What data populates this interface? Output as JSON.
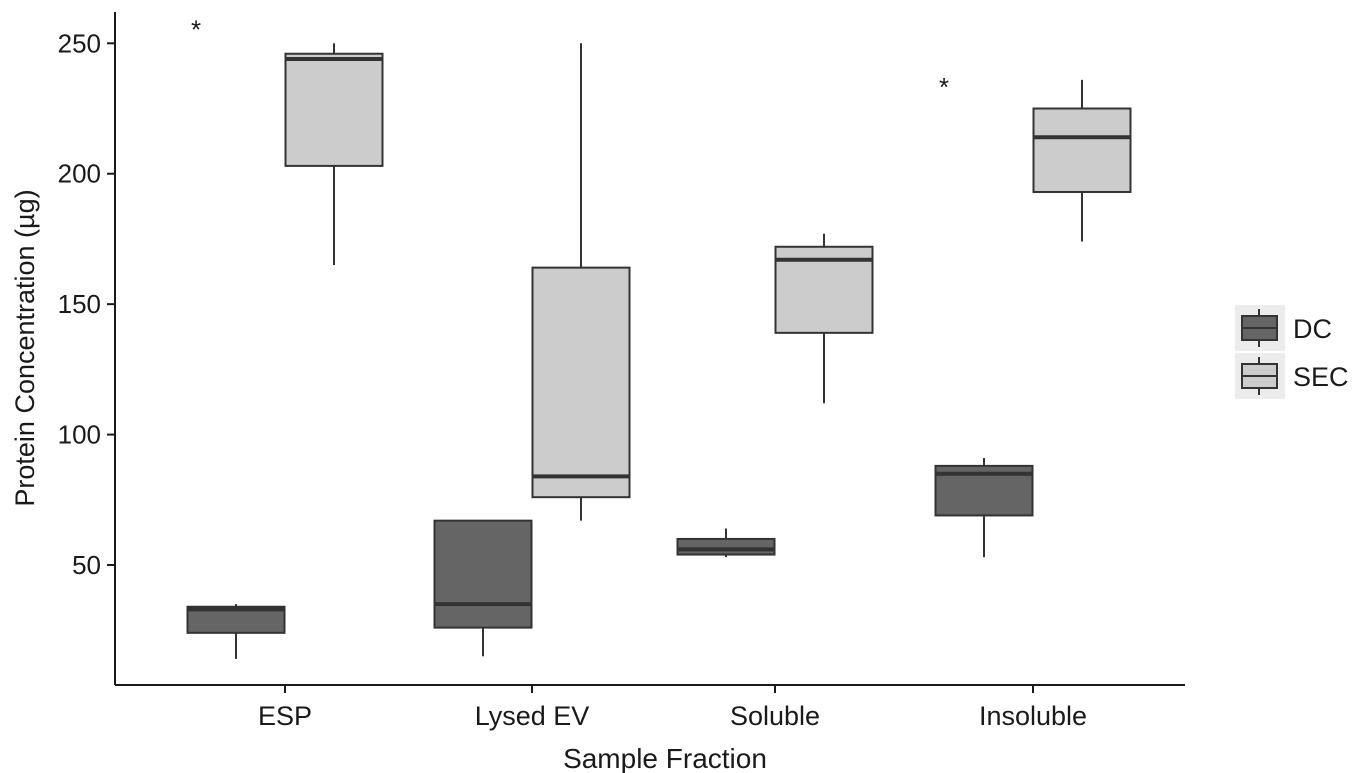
{
  "chart_data": {
    "type": "boxplot",
    "xlabel": "Sample Fraction",
    "ylabel": "Protein Concentration (µg)",
    "categories": [
      "ESP",
      "Lysed EV",
      "Soluble",
      "Insoluble"
    ],
    "yticks": [
      50,
      100,
      150,
      200,
      250
    ],
    "ylim": [
      4,
      262
    ],
    "grid": false,
    "legend_position": "right",
    "series": [
      {
        "name": "DC",
        "color": "#656565",
        "boxes": [
          {
            "category": "ESP",
            "min": 14,
            "q1": 24,
            "median": 33,
            "q3": 34,
            "max": 35
          },
          {
            "category": "Lysed EV",
            "min": 15,
            "q1": 26,
            "median": 35,
            "q3": 67,
            "max": 67
          },
          {
            "category": "Soluble",
            "min": 53,
            "q1": 54,
            "median": 56,
            "q3": 60,
            "max": 64
          },
          {
            "category": "Insoluble",
            "min": 53,
            "q1": 69,
            "median": 85,
            "q3": 88,
            "max": 91
          }
        ]
      },
      {
        "name": "SEC",
        "color": "#cccccc",
        "boxes": [
          {
            "category": "ESP",
            "min": 165,
            "q1": 203,
            "median": 244,
            "q3": 246,
            "max": 250
          },
          {
            "category": "Lysed EV",
            "min": 67,
            "q1": 76,
            "median": 84,
            "q3": 164,
            "max": 250
          },
          {
            "category": "Soluble",
            "min": 112,
            "q1": 139,
            "median": 167,
            "q3": 172,
            "max": 177
          },
          {
            "category": "Insoluble",
            "min": 174,
            "q1": 193,
            "median": 214,
            "q3": 225,
            "max": 236
          }
        ]
      }
    ],
    "annotations": [
      {
        "text": "*",
        "category": "ESP",
        "y": 258
      },
      {
        "text": "*",
        "category": "Insoluble",
        "y": 236
      }
    ]
  }
}
